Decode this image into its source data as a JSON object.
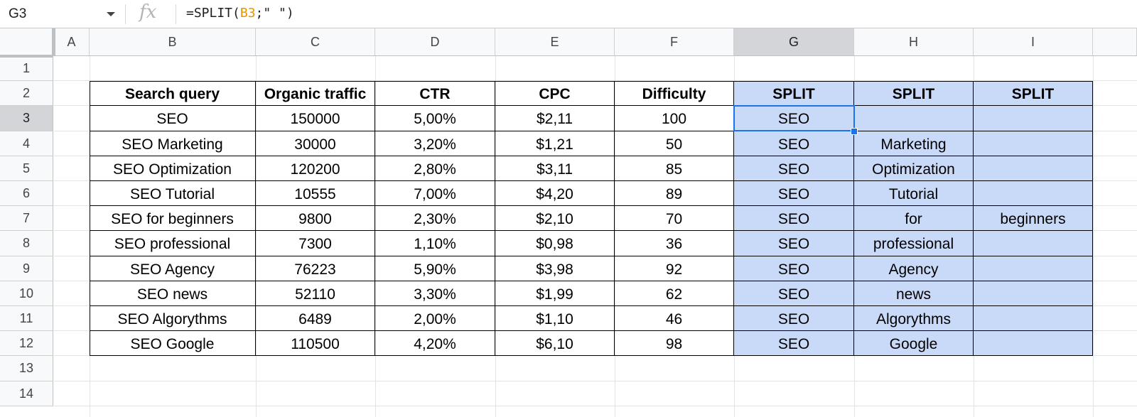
{
  "formula_bar": {
    "name_box": "G3",
    "fx_label": "fx",
    "formula_prefix": "=SPLIT(",
    "formula_ref": "B3",
    "formula_suffix": ";\" \")"
  },
  "selection": {
    "column": "G",
    "row": "3"
  },
  "columns": [
    "A",
    "B",
    "C",
    "D",
    "E",
    "F",
    "G",
    "H",
    "I"
  ],
  "rows": [
    "1",
    "2",
    "3",
    "4",
    "5",
    "6",
    "7",
    "8",
    "9",
    "10",
    "11",
    "12",
    "13",
    "14"
  ],
  "table": {
    "headers": [
      "Search query",
      "Organic traffic",
      "CTR",
      "CPC",
      "Difficulty",
      "SPLIT",
      "SPLIT",
      "SPLIT"
    ],
    "rows": [
      [
        "SEO",
        "150000",
        "5,00%",
        "$2,11",
        "100",
        "SEO",
        "",
        ""
      ],
      [
        "SEO Marketing",
        "30000",
        "3,20%",
        "$1,21",
        "50",
        "SEO",
        "Marketing",
        ""
      ],
      [
        "SEO Optimization",
        "120200",
        "2,80%",
        "$3,11",
        "85",
        "SEO",
        "Optimization",
        ""
      ],
      [
        "SEO Tutorial",
        "10555",
        "7,00%",
        "$4,20",
        "89",
        "SEO",
        "Tutorial",
        ""
      ],
      [
        "SEO for beginners",
        "9800",
        "2,30%",
        "$2,10",
        "70",
        "SEO",
        "for",
        "beginners"
      ],
      [
        "SEO professional",
        "7300",
        "1,10%",
        "$0,98",
        "36",
        "SEO",
        "professional",
        ""
      ],
      [
        "SEO Agency",
        "76223",
        "5,90%",
        "$3,98",
        "92",
        "SEO",
        "Agency",
        ""
      ],
      [
        "SEO news",
        "52110",
        "3,30%",
        "$1,99",
        "62",
        "SEO",
        "news",
        ""
      ],
      [
        "SEO Algorythms",
        "6489",
        "2,00%",
        "$1,10",
        "46",
        "SEO",
        "Algorythms",
        ""
      ],
      [
        "SEO Google",
        "110500",
        "4,20%",
        "$6,10",
        "98",
        "SEO",
        "Google",
        ""
      ]
    ]
  },
  "colors": {
    "split_fill": "#c9daf8",
    "selection_border": "#1a73e8",
    "formula_ref": "#e69500"
  }
}
